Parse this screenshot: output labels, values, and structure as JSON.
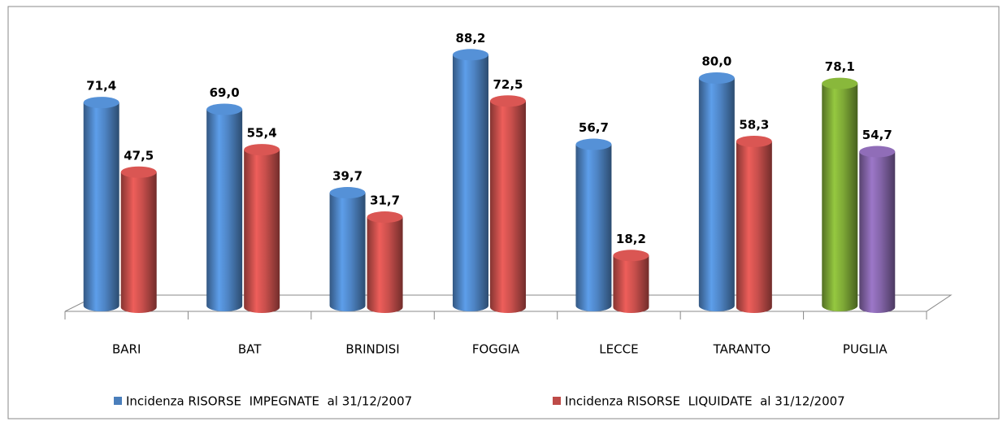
{
  "chart_data": {
    "type": "bar3d",
    "categories": [
      "BARI",
      "BAT",
      "BRINDISI",
      "FOGGIA",
      "LECCE",
      "TARANTO",
      "PUGLIA"
    ],
    "series": [
      {
        "name": "Incidenza RISORSE  IMPEGNATE  al 31/12/2007",
        "color": "#4a7ebb",
        "point_colors": [
          "#4a7ebb",
          "#4a7ebb",
          "#4a7ebb",
          "#4a7ebb",
          "#4a7ebb",
          "#4a7ebb",
          "#77a033"
        ],
        "values": [
          71.4,
          69.0,
          39.7,
          88.2,
          56.7,
          80.0,
          78.1
        ],
        "value_labels": [
          "71,4",
          "69,0",
          "39,7",
          "88,2",
          "56,7",
          "80,0",
          "78,1"
        ]
      },
      {
        "name": "Incidenza RISORSE  LIQUIDATE  al 31/12/2007",
        "color": "#be4b48",
        "point_colors": [
          "#be4b48",
          "#be4b48",
          "#be4b48",
          "#be4b48",
          "#be4b48",
          "#be4b48",
          "#7d5fa0"
        ],
        "values": [
          47.5,
          55.4,
          31.7,
          72.5,
          18.2,
          58.3,
          54.7
        ],
        "value_labels": [
          "47,5",
          "55,4",
          "31,7",
          "72,5",
          "18,2",
          "58,3",
          "54,7"
        ]
      }
    ]
  }
}
